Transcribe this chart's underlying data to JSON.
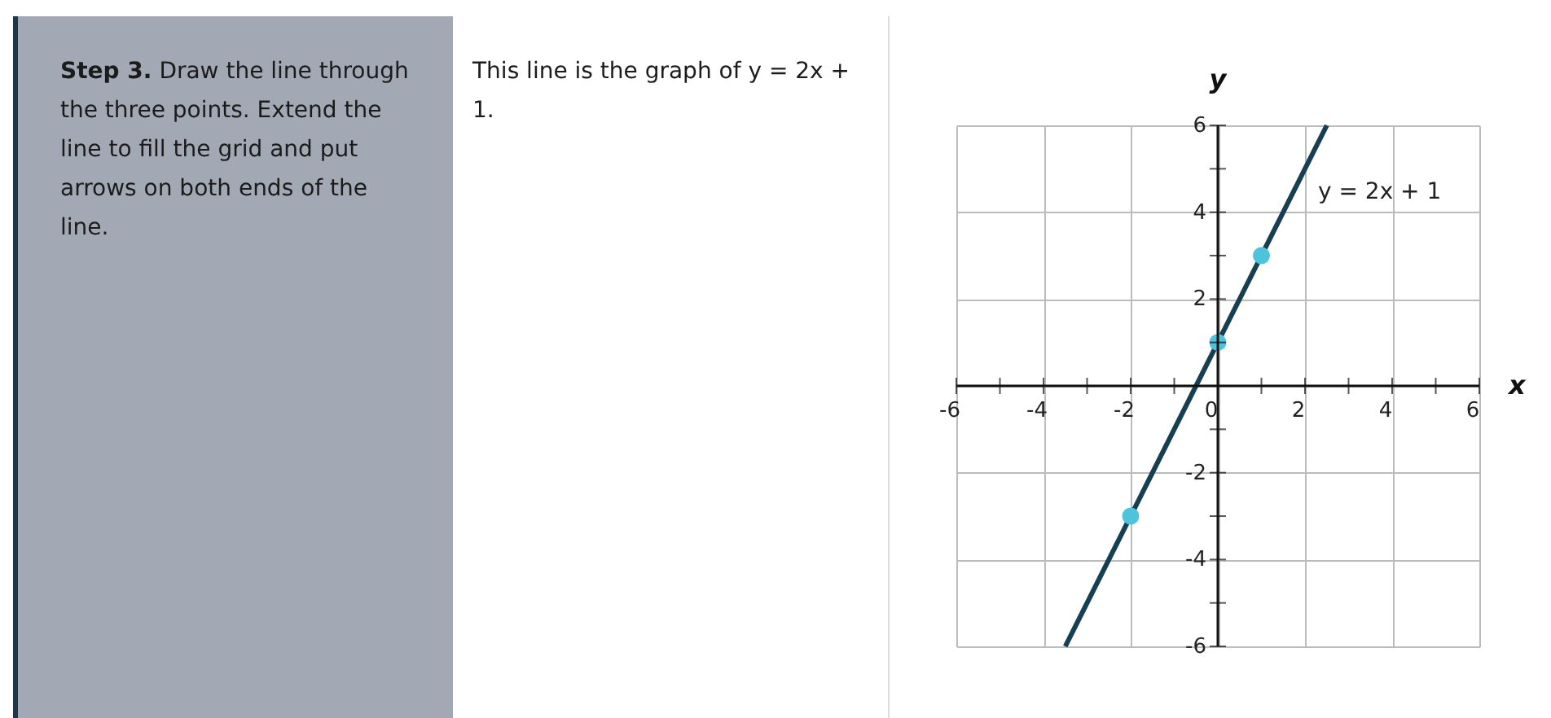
{
  "chart_data": {
    "type": "line",
    "xlabel": "x",
    "ylabel": "y",
    "xlim": [
      -6,
      6
    ],
    "ylim": [
      -6,
      6
    ],
    "xticks": [
      -6,
      {
        "value": -5,
        "label": null
      },
      -4,
      {
        "value": -3,
        "label": null
      },
      -2,
      {
        "value": -1,
        "label": null
      },
      0,
      {
        "value": 1,
        "label": null
      },
      2,
      {
        "value": 3,
        "label": null
      },
      4,
      {
        "value": 5,
        "label": null
      },
      6
    ],
    "yticks": [
      -6,
      {
        "value": -5,
        "label": null
      },
      -4,
      {
        "value": -3,
        "label": null
      },
      -2,
      {
        "value": -1,
        "label": null
      },
      {
        "value": 0,
        "label": null
      },
      {
        "value": 1,
        "label": null
      },
      2,
      {
        "value": 3,
        "label": null
      },
      4,
      {
        "value": 5,
        "label": null
      },
      6
    ],
    "grid": true,
    "series": [
      {
        "color": "#173f52",
        "x": [
          -3.5,
          2.5
        ],
        "values": [
          -6,
          6
        ]
      },
      {
        "type": "scatter",
        "color": "#4fc3db",
        "marker": "circle",
        "x": [
          -2,
          0,
          1
        ],
        "values": [
          -3,
          1,
          3
        ]
      }
    ],
    "annotations": [
      "Step 3.",
      "Draw the line through the three points. Extend the line to fill the grid and put arrows on both ends of the line.",
      "This line is the graph of y = 2x + 1.",
      "y = 2x + 1"
    ]
  }
}
